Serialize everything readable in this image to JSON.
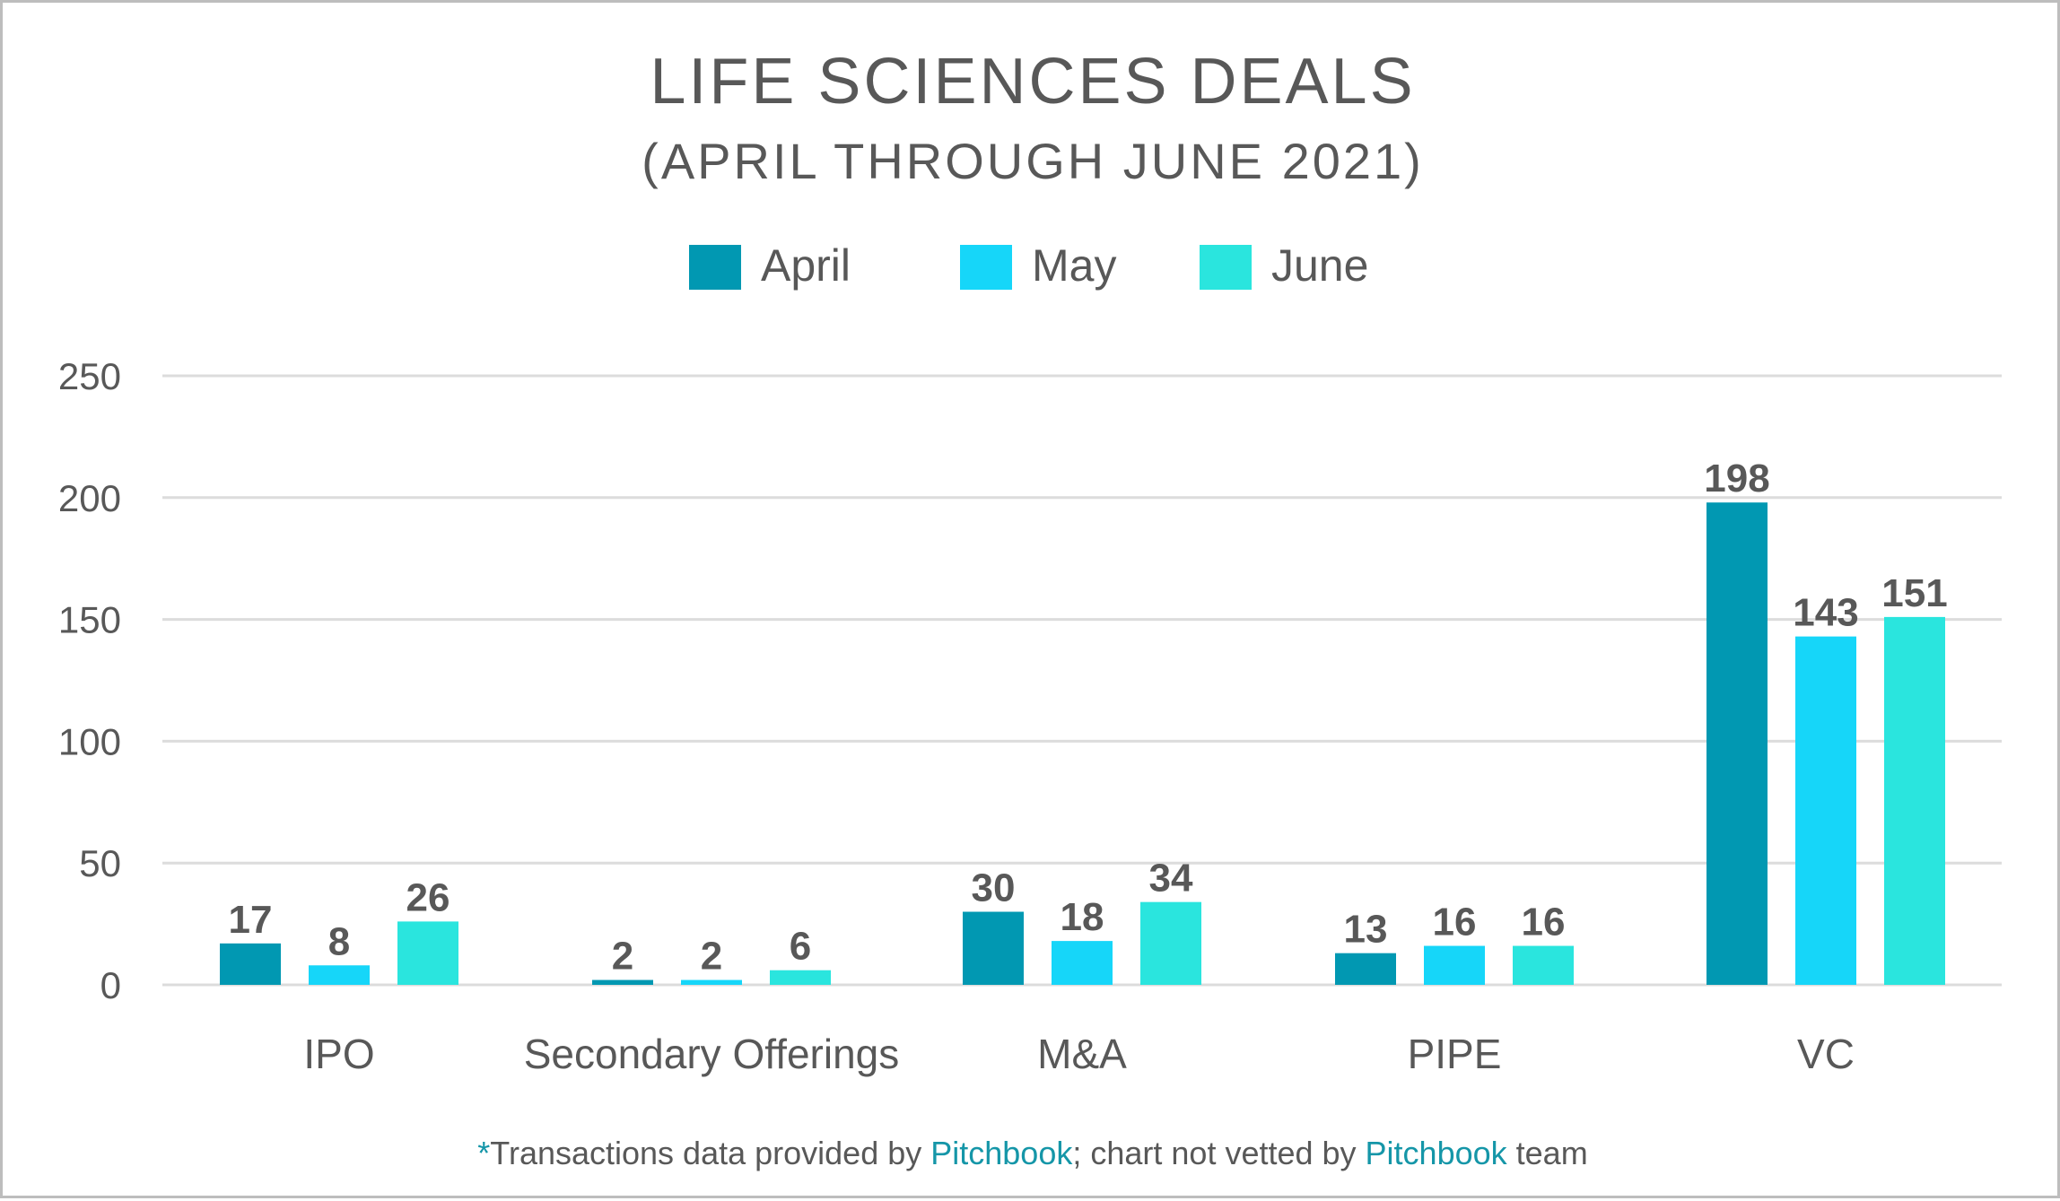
{
  "chart_data": {
    "type": "bar",
    "title": "LIFE SCIENCES DEALS",
    "subtitle": "(APRIL THROUGH JUNE 2021)",
    "categories": [
      "IPO",
      "Secondary Offerings",
      "M&A",
      "PIPE",
      "VC"
    ],
    "series": [
      {
        "name": "April",
        "color": "#0198b2",
        "values": [
          17,
          2,
          30,
          13,
          198
        ]
      },
      {
        "name": "May",
        "color": "#16d6f9",
        "values": [
          8,
          2,
          18,
          16,
          143
        ]
      },
      {
        "name": "June",
        "color": "#2ae5de",
        "values": [
          26,
          6,
          34,
          16,
          151
        ]
      }
    ],
    "ylim": [
      0,
      250
    ],
    "yticks": [
      0,
      50,
      100,
      150,
      200,
      250
    ],
    "ytick_labels": [
      "0",
      "50",
      "100",
      "150",
      "200",
      "250"
    ],
    "xlabel": "",
    "ylabel": "",
    "grid": true,
    "legend_position": "top-center",
    "data_labels": true
  },
  "footnote": {
    "star": "*",
    "part1": "Transactions data provided by ",
    "link1": "Pitchbook",
    "part2": "; chart not vetted by ",
    "link2": "Pitchbook",
    "part3": " team",
    "accent_color": "#1596a8"
  }
}
